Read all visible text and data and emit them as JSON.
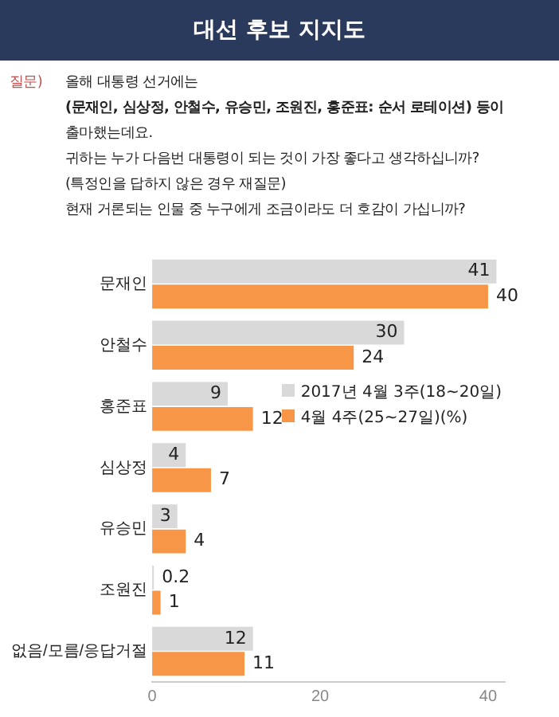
{
  "chart_data": {
    "type": "bar",
    "orientation": "horizontal",
    "title": "대선 후보 지지도",
    "annotations": [
      "질문)",
      "올해 대통령 선거에는",
      "(문재인, 심상정, 안철수, 유승민, 조원진, 홍준표: 순서 로테이션) 등이",
      "출마했는데요.",
      "귀하는 누가 다음번 대통령이 되는 것이 가장 좋다고 생각하십니까?",
      "(특정인을 답하지 않은 경우 재질문)",
      "현재 거론되는 인물 중 누구에게 조금이라도 더 호감이 가십니까?"
    ],
    "categories": [
      "문재인",
      "안철수",
      "홍준표",
      "심상정",
      "유승민",
      "조원진",
      "없음/모름/응답거절"
    ],
    "series": [
      {
        "name": "2017년 4월 3주(18~20일)",
        "color": "#d9d9d9",
        "values": [
          41,
          30,
          9,
          4,
          3,
          0.2,
          12
        ]
      },
      {
        "name": "4월 4주(25~27일)(%)",
        "color": "#f79646",
        "values": [
          40,
          24,
          12,
          7,
          4,
          1,
          11
        ]
      }
    ],
    "xlim": [
      0,
      42
    ],
    "xticks": [
      0,
      20,
      40
    ],
    "data_labels": true,
    "legend": "right",
    "grid": false
  }
}
